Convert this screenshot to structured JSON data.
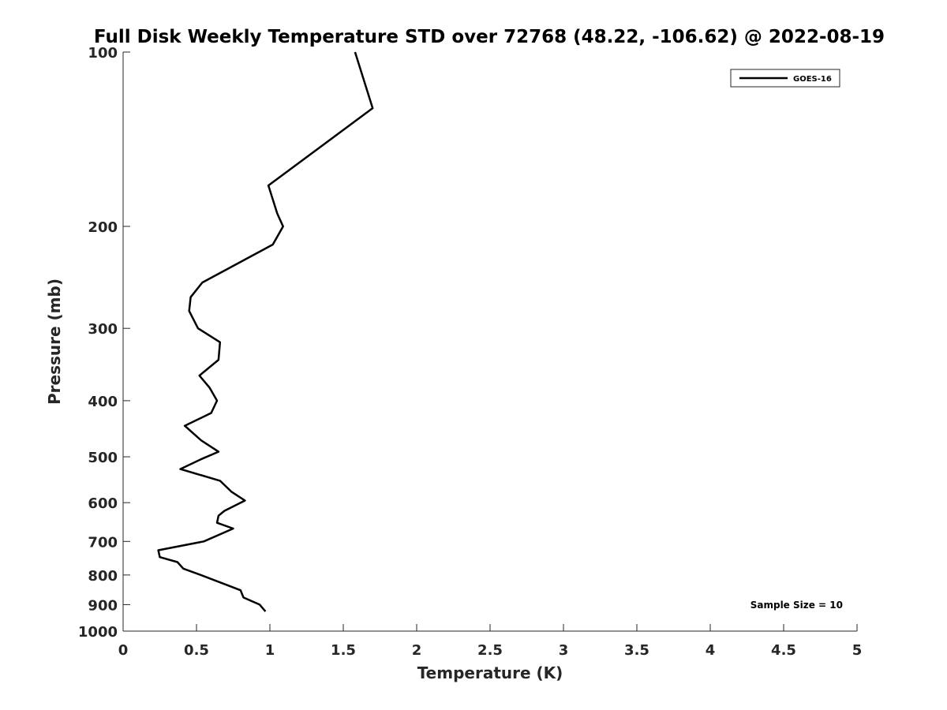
{
  "chart_data": {
    "type": "line",
    "title": "Full Disk Weekly Temperature STD over 72768 (48.22, -106.62) @ 2022-08-19",
    "xlabel": "Temperature (K)",
    "ylabel": "Pressure (mb)",
    "xlim": [
      0,
      5
    ],
    "ylim": [
      100,
      1000
    ],
    "y_scale": "log",
    "y_reversed": true,
    "x_ticks": [
      "0",
      "0.5",
      "1",
      "1.5",
      "2",
      "2.5",
      "3",
      "3.5",
      "4",
      "4.5",
      "5"
    ],
    "y_ticks": [
      "100",
      "200",
      "300",
      "400",
      "500",
      "600",
      "700",
      "800",
      "900",
      "1000"
    ],
    "grid": false,
    "legend_position": "top-right",
    "annotation": "Sample Size = 10",
    "series": [
      {
        "name": "GOES-16",
        "color": "#000000",
        "points": [
          {
            "t": 1.58,
            "p": 100
          },
          {
            "t": 1.7,
            "p": 125
          },
          {
            "t": 0.99,
            "p": 170
          },
          {
            "t": 1.05,
            "p": 190
          },
          {
            "t": 1.09,
            "p": 200
          },
          {
            "t": 1.02,
            "p": 215
          },
          {
            "t": 0.54,
            "p": 250
          },
          {
            "t": 0.46,
            "p": 265
          },
          {
            "t": 0.45,
            "p": 280
          },
          {
            "t": 0.51,
            "p": 300
          },
          {
            "t": 0.66,
            "p": 317
          },
          {
            "t": 0.65,
            "p": 340
          },
          {
            "t": 0.52,
            "p": 362
          },
          {
            "t": 0.59,
            "p": 380
          },
          {
            "t": 0.64,
            "p": 400
          },
          {
            "t": 0.6,
            "p": 420
          },
          {
            "t": 0.42,
            "p": 442
          },
          {
            "t": 0.53,
            "p": 468
          },
          {
            "t": 0.65,
            "p": 490
          },
          {
            "t": 0.53,
            "p": 505
          },
          {
            "t": 0.39,
            "p": 525
          },
          {
            "t": 0.66,
            "p": 550
          },
          {
            "t": 0.74,
            "p": 575
          },
          {
            "t": 0.83,
            "p": 595
          },
          {
            "t": 0.69,
            "p": 620
          },
          {
            "t": 0.65,
            "p": 632
          },
          {
            "t": 0.64,
            "p": 650
          },
          {
            "t": 0.75,
            "p": 665
          },
          {
            "t": 0.55,
            "p": 700
          },
          {
            "t": 0.24,
            "p": 725
          },
          {
            "t": 0.25,
            "p": 745
          },
          {
            "t": 0.37,
            "p": 760
          },
          {
            "t": 0.41,
            "p": 780
          },
          {
            "t": 0.53,
            "p": 800
          },
          {
            "t": 0.8,
            "p": 850
          },
          {
            "t": 0.82,
            "p": 875
          },
          {
            "t": 0.93,
            "p": 900
          },
          {
            "t": 0.97,
            "p": 925
          }
        ]
      }
    ]
  }
}
